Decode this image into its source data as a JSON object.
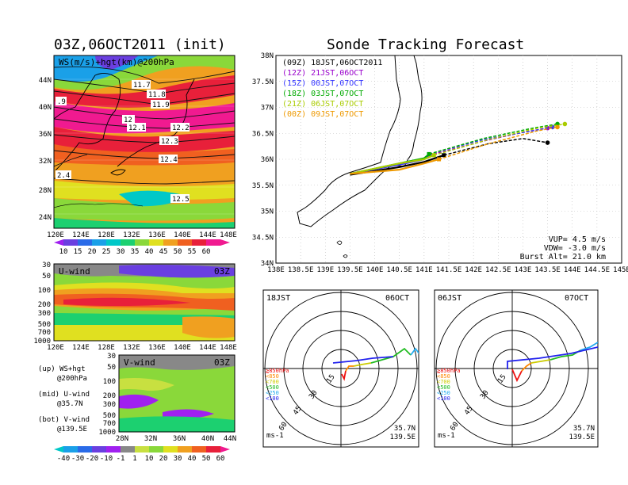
{
  "titles": {
    "left": "03Z,06OCT2011 (init)",
    "right": "Sonde Tracking Forecast"
  },
  "top_panel": {
    "title": "WS(m/s)+hgt(km)@200hPa",
    "contour_labels": [
      "11.7",
      "11.8",
      "11.9",
      "12",
      "12.1",
      "12.2",
      "12.3",
      "12.4",
      "12.5",
      ".9",
      "2.4"
    ],
    "lat_ticks": [
      "44N",
      "40N",
      "36N",
      "32N",
      "28N",
      "24N"
    ],
    "lon_ticks": [
      "120E",
      "124E",
      "128E",
      "132E",
      "136E",
      "140E",
      "144E",
      "148E"
    ],
    "colorbar": [
      "10",
      "15",
      "20",
      "25",
      "30",
      "35",
      "40",
      "45",
      "50",
      "55",
      "60"
    ]
  },
  "mid_panel": {
    "title": "U-wind",
    "time": "03Z",
    "p_ticks": [
      "30",
      "50",
      "100",
      "200",
      "300",
      "500",
      "700",
      "1000"
    ],
    "lon_ticks": [
      "120E",
      "124E",
      "128E",
      "132E",
      "136E",
      "140E",
      "144E",
      "148E"
    ]
  },
  "bot_panel": {
    "title": "V-wind",
    "time": "03Z",
    "p_ticks": [
      "30",
      "50",
      "100",
      "200",
      "300",
      "500",
      "700",
      "1000"
    ],
    "lat_ticks": [
      "28N",
      "32N",
      "36N",
      "40N",
      "44N"
    ]
  },
  "notes": [
    {
      "a": "(up) WS+hgt",
      "b": "@200hPa"
    },
    {
      "a": "(mid) U-wind",
      "b": "@35.7N"
    },
    {
      "a": "(bot) V-wind",
      "b": "@139.5E"
    }
  ],
  "colorbar2": [
    "-40",
    "-30",
    "-20",
    "-10",
    "-1",
    "1",
    "10",
    "20",
    "30",
    "40",
    "50",
    "60"
  ],
  "track_panel": {
    "lat_ticks": [
      "38N",
      "37.5N",
      "37N",
      "36.5N",
      "36N",
      "35.5N",
      "35N",
      "34.5N",
      "34N"
    ],
    "lon_ticks": [
      "138E",
      "138.5E",
      "139E",
      "139.5E",
      "140E",
      "140.5E",
      "141E",
      "141.5E",
      "142E",
      "142.5E",
      "143E",
      "143.5E",
      "144E",
      "144.5E",
      "145E"
    ],
    "params": [
      "VUP= 4.5 m/s",
      "VDW= -3.0 m/s",
      "Burst Alt= 21.0 km"
    ]
  },
  "chart_data": {
    "type": "line",
    "title": "Sonde Tracking Forecast",
    "xlim": [
      138,
      145
    ],
    "ylim": [
      34,
      38
    ],
    "series": [
      {
        "name": "(09Z) 18JST,06OCT2011",
        "color": "#000000",
        "x": [
          139.5,
          140.5,
          141.0,
          141.4,
          142.3,
          143.0,
          143.5
        ],
        "y": [
          35.7,
          35.85,
          35.95,
          36.08,
          36.3,
          36.4,
          36.32
        ]
      },
      {
        "name": "(12Z) 21JST,06OCT",
        "color": "#9900cc",
        "x": [
          139.5,
          140.5,
          141.0,
          141.1,
          142.2,
          143.0,
          143.5
        ],
        "y": [
          35.72,
          35.9,
          36.0,
          36.08,
          36.35,
          36.52,
          36.6
        ]
      },
      {
        "name": "(15Z) 00JST,07OCT",
        "color": "#3333ff",
        "x": [
          139.5,
          140.5,
          141.0,
          141.1,
          142.2,
          143.2,
          143.6
        ],
        "y": [
          35.72,
          35.9,
          36.0,
          36.1,
          36.38,
          36.55,
          36.62
        ]
      },
      {
        "name": "(18Z) 03JST,07OCT",
        "color": "#00aa00",
        "x": [
          139.5,
          140.5,
          141.0,
          141.1,
          142.2,
          143.2,
          143.7
        ],
        "y": [
          35.72,
          35.92,
          36.02,
          36.1,
          36.4,
          36.6,
          36.68
        ]
      },
      {
        "name": "(21Z) 06JST,07OCT",
        "color": "#aacc00",
        "x": [
          139.5,
          140.5,
          141.0,
          141.2,
          142.3,
          143.3,
          143.85
        ],
        "y": [
          35.72,
          35.92,
          36.0,
          36.08,
          36.38,
          36.6,
          36.68
        ]
      },
      {
        "name": "(00Z) 09JST,07OCT",
        "color": "#ee9900",
        "x": [
          139.5,
          140.5,
          141.0,
          141.3,
          142.3,
          143.3,
          143.7
        ],
        "y": [
          35.72,
          35.8,
          35.92,
          36.0,
          36.3,
          36.55,
          36.62
        ]
      }
    ]
  },
  "hodo_left": {
    "time": "18JST",
    "date": "06OCT",
    "ring_labels": [
      "15",
      "30",
      "45",
      "60"
    ],
    "legend": [
      "≧850hPa",
      "<850",
      "<700",
      "<500",
      "<250",
      "<100"
    ],
    "unit": "ms-1",
    "loc1": "35.7N",
    "loc2": "139.5E"
  },
  "hodo_right": {
    "time": "06JST",
    "date": "07OCT",
    "ring_labels": [
      "15",
      "30",
      "45",
      "60"
    ],
    "legend": [
      "≧850hPa",
      "<850",
      "<700",
      "<500",
      "<250",
      "<100"
    ],
    "unit": "ms-1",
    "loc1": "35.7N",
    "loc2": "139.5E"
  },
  "colors": {
    "ws_scale": [
      "#a020f0",
      "#6a3fe0",
      "#2a6be8",
      "#1aa0e8",
      "#00c8c8",
      "#1cd070",
      "#8ad83a",
      "#e0e020",
      "#f0a020",
      "#f06020",
      "#e8203a",
      "#f01a90"
    ],
    "legend_colors": [
      "#ee1111",
      "#ff8800",
      "#cccc00",
      "#22bb22",
      "#22aaee",
      "#2222ee"
    ]
  }
}
